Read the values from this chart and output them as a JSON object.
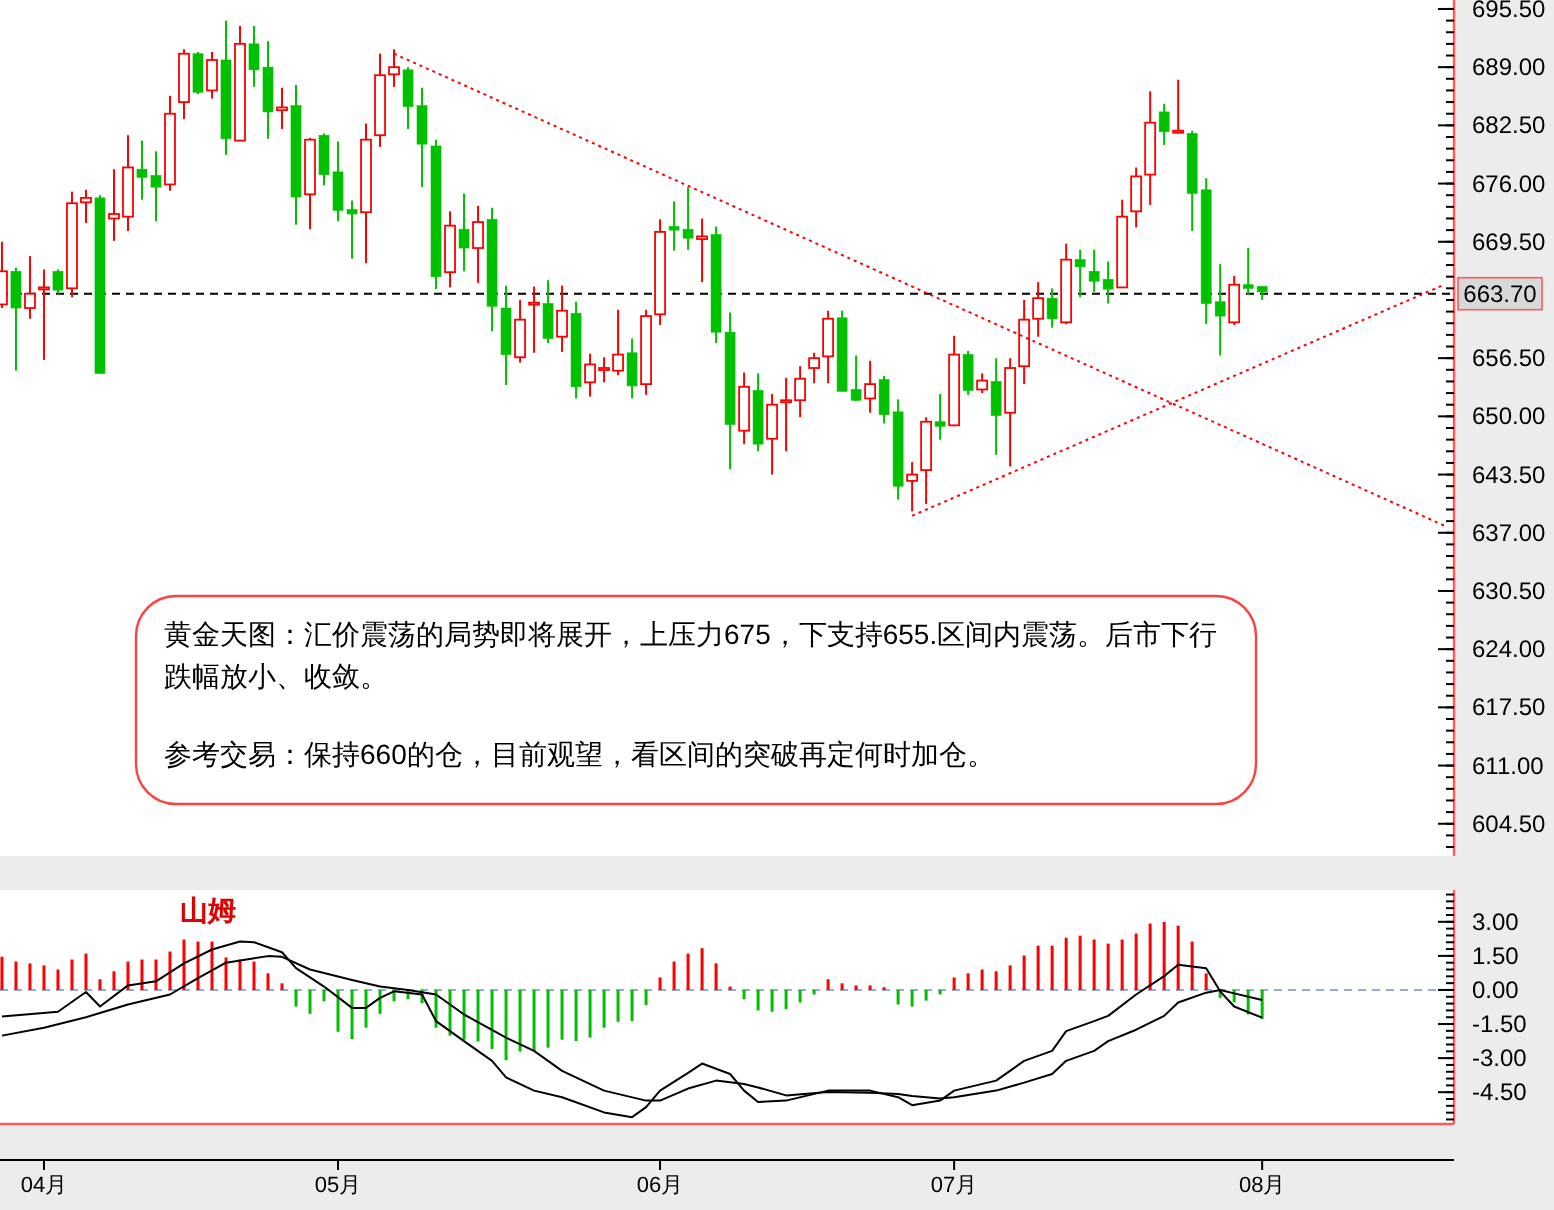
{
  "chart_data": [
    {
      "type": "candlestick",
      "categories": [
        null,
        null,
        null,
        null,
        null,
        null,
        null,
        null,
        null,
        null,
        null,
        null,
        null,
        null,
        null,
        null,
        null,
        null,
        null,
        null,
        null,
        null,
        null,
        null,
        null,
        null,
        null,
        null,
        null,
        null,
        null,
        null,
        null,
        null,
        null,
        null,
        null,
        null,
        null,
        null,
        null,
        null,
        null,
        null,
        null,
        null,
        null,
        null,
        null,
        null,
        null,
        null,
        null,
        null,
        null,
        null,
        null,
        null,
        null,
        null,
        null,
        null,
        null,
        null,
        null,
        null,
        null,
        null,
        null,
        null,
        null,
        null,
        null,
        null,
        null,
        null,
        null,
        null,
        null,
        null,
        null,
        null,
        null,
        null,
        null,
        null,
        null,
        null,
        null,
        null,
        null,
        null,
        null,
        null,
        null,
        null,
        null,
        null,
        null,
        null,
        null,
        null,
        null,
        null
      ],
      "ohlc": [
        [
          662.5,
          669.5,
          662.1,
          666.2
        ],
        [
          666.2,
          666.6,
          655.1,
          662.1
        ],
        [
          662.1,
          667.9,
          660.9,
          663.7
        ],
        [
          664.2,
          666.4,
          656.3,
          664.4
        ],
        [
          666.2,
          666.4,
          663.7,
          664.1
        ],
        [
          664.3,
          675.1,
          663.3,
          673.8
        ],
        [
          673.9,
          675.3,
          671.6,
          674.4
        ],
        [
          674.4,
          674.7,
          654.8,
          654.8
        ],
        [
          672.1,
          677.6,
          669.6,
          672.6
        ],
        [
          672.3,
          681.4,
          670.7,
          677.8
        ],
        [
          677.6,
          680.8,
          674.2,
          676.7
        ],
        [
          676.9,
          679.6,
          671.8,
          675.6
        ],
        [
          675.9,
          685.8,
          675.2,
          683.8
        ],
        [
          685.1,
          691.0,
          683.2,
          690.5
        ],
        [
          690.5,
          690.7,
          686.0,
          686.2
        ],
        [
          686.4,
          690.7,
          685.5,
          689.8
        ],
        [
          689.8,
          694.2,
          679.2,
          681.0
        ],
        [
          680.8,
          693.6,
          680.8,
          691.6
        ],
        [
          691.6,
          693.6,
          686.8,
          688.7
        ],
        [
          689.0,
          691.9,
          681.0,
          684.0
        ],
        [
          684.2,
          686.7,
          682.1,
          684.5
        ],
        [
          684.7,
          687.0,
          671.4,
          674.5
        ],
        [
          674.8,
          681.1,
          670.9,
          680.9
        ],
        [
          681.4,
          681.6,
          675.8,
          677.0
        ],
        [
          677.3,
          680.7,
          671.8,
          673.0
        ],
        [
          673.1,
          674.1,
          667.6,
          672.6
        ],
        [
          672.8,
          682.7,
          667.1,
          680.9
        ],
        [
          681.4,
          690.5,
          680.1,
          688.1
        ],
        [
          688.2,
          691.0,
          686.8,
          689.0
        ],
        [
          688.7,
          689.0,
          682.1,
          684.6
        ],
        [
          684.7,
          686.7,
          675.6,
          680.4
        ],
        [
          680.2,
          680.9,
          664.2,
          665.6
        ],
        [
          666.1,
          672.9,
          664.4,
          671.3
        ],
        [
          670.9,
          674.9,
          666.2,
          668.8
        ],
        [
          668.8,
          673.5,
          664.9,
          671.7
        ],
        [
          672.0,
          673.3,
          659.5,
          662.3
        ],
        [
          662.1,
          664.6,
          653.5,
          656.9
        ],
        [
          656.6,
          663.0,
          656.0,
          660.8
        ],
        [
          662.5,
          664.5,
          657.1,
          662.7
        ],
        [
          662.6,
          665.2,
          658.2,
          658.7
        ],
        [
          658.9,
          664.6,
          657.2,
          661.8
        ],
        [
          661.5,
          662.8,
          652.0,
          653.3
        ],
        [
          653.8,
          657.0,
          652.2,
          655.8
        ],
        [
          655.2,
          656.6,
          653.8,
          655.4
        ],
        [
          655.1,
          661.9,
          654.6,
          656.9
        ],
        [
          657.1,
          658.7,
          652.0,
          653.4
        ],
        [
          653.6,
          661.9,
          652.4,
          661.2
        ],
        [
          661.4,
          672.0,
          660.2,
          670.6
        ],
        [
          671.2,
          674.0,
          668.5,
          670.8
        ],
        [
          670.9,
          675.6,
          668.6,
          669.9
        ],
        [
          669.8,
          672.1,
          665.0,
          670.1
        ],
        [
          670.3,
          671.2,
          658.2,
          659.4
        ],
        [
          659.4,
          661.6,
          644.1,
          649.1
        ],
        [
          648.4,
          654.9,
          646.9,
          653.3
        ],
        [
          652.9,
          654.8,
          646.1,
          646.9
        ],
        [
          647.5,
          652.5,
          643.5,
          651.3
        ],
        [
          651.6,
          654.3,
          646.1,
          651.8
        ],
        [
          651.8,
          655.6,
          649.9,
          654.2
        ],
        [
          655.4,
          657.1,
          653.7,
          656.5
        ],
        [
          656.7,
          661.8,
          653.7,
          660.9
        ],
        [
          661.0,
          661.8,
          652.8,
          652.8
        ],
        [
          653.0,
          656.8,
          651.7,
          651.8
        ],
        [
          652.0,
          656.2,
          650.4,
          653.6
        ],
        [
          654.1,
          654.5,
          649.2,
          650.2
        ],
        [
          650.5,
          651.9,
          640.7,
          642.2
        ],
        [
          642.8,
          644.9,
          639.4,
          643.5
        ],
        [
          644.0,
          649.9,
          640.2,
          649.4
        ],
        [
          649.4,
          652.5,
          647.4,
          648.9
        ],
        [
          649.0,
          659.0,
          648.9,
          656.9
        ],
        [
          656.9,
          657.3,
          652.4,
          652.9
        ],
        [
          653.0,
          654.8,
          652.6,
          654.0
        ],
        [
          653.9,
          656.5,
          645.7,
          650.1
        ],
        [
          650.4,
          656.5,
          644.4,
          655.4
        ],
        [
          655.6,
          663.0,
          653.6,
          660.8
        ],
        [
          660.9,
          665.0,
          658.9,
          663.2
        ],
        [
          663.2,
          664.3,
          659.9,
          660.9
        ],
        [
          660.5,
          669.3,
          660.3,
          667.5
        ],
        [
          667.5,
          668.6,
          663.3,
          666.7
        ],
        [
          666.2,
          668.6,
          663.9,
          665.1
        ],
        [
          665.3,
          667.3,
          662.6,
          664.2
        ],
        [
          664.4,
          674.2,
          664.4,
          672.3
        ],
        [
          672.9,
          677.8,
          671.1,
          676.8
        ],
        [
          677.0,
          686.3,
          673.6,
          682.8
        ],
        [
          684.0,
          684.9,
          680.3,
          681.8
        ],
        [
          681.7,
          687.6,
          681.6,
          681.9
        ],
        [
          681.6,
          681.9,
          670.7,
          674.9
        ],
        [
          675.3,
          676.6,
          660.3,
          662.6
        ],
        [
          662.8,
          667.0,
          656.8,
          661.2
        ],
        [
          660.5,
          665.7,
          660.2,
          664.7
        ],
        [
          664.7,
          668.8,
          663.6,
          664.3
        ],
        [
          664.5,
          664.5,
          663.0,
          663.9
        ],
        null,
        null,
        null,
        null,
        null,
        null,
        null,
        null,
        null,
        null,
        null,
        null,
        null
      ],
      "colors": [
        "#ff0000",
        "#00c000",
        "#ff0000",
        "#ff0000",
        "#00c000",
        "#ff0000",
        "#ff0000",
        "#00c000",
        "#ff0000",
        "#ff0000",
        "#00c000",
        "#00c000",
        "#ff0000",
        "#ff0000",
        "#00c000",
        "#ff0000",
        "#00c000",
        "#ff0000",
        "#00c000",
        "#00c000",
        "#ff0000",
        "#00c000",
        "#ff0000",
        "#00c000",
        "#00c000",
        "#00c000",
        "#ff0000",
        "#ff0000",
        "#ff0000",
        "#00c000",
        "#00c000",
        "#00c000",
        "#ff0000",
        "#00c000",
        "#ff0000",
        "#00c000",
        "#00c000",
        "#ff0000",
        "#ff0000",
        "#00c000",
        "#ff0000",
        "#00c000",
        "#ff0000",
        "#ff0000",
        "#ff0000",
        "#00c000",
        "#ff0000",
        "#ff0000",
        "#00c000",
        "#00c000",
        "#ff0000",
        "#00c000",
        "#00c000",
        "#ff0000",
        "#00c000",
        "#ff0000",
        "#ff0000",
        "#ff0000",
        "#ff0000",
        "#ff0000",
        "#00c000",
        "#00c000",
        "#ff0000",
        "#00c000",
        "#00c000",
        "#ff0000",
        "#ff0000",
        "#00c000",
        "#ff0000",
        "#00c000",
        "#ff0000",
        "#00c000",
        "#ff0000",
        "#ff0000",
        "#ff0000",
        "#00c000",
        "#ff0000",
        "#00c000",
        "#00c000",
        "#00c000",
        "#ff0000",
        "#ff0000",
        "#ff0000",
        "#00c000",
        "#ff0000",
        "#00c000",
        "#00c000",
        "#00c000",
        "#ff0000",
        "#00c000",
        "#00c000",
        null,
        null,
        null,
        null,
        null,
        null,
        null,
        null,
        null,
        null,
        null,
        null,
        null
      ],
      "series": [
        {
          "type": "line",
          "values": [
            null,
            null,
            null,
            null,
            null,
            null,
            null,
            null,
            null,
            null,
            null,
            null,
            null,
            null,
            null,
            null,
            null,
            null,
            null,
            null,
            null,
            null,
            null,
            null,
            null,
            null,
            null,
            null,
            690.5,
            null,
            null,
            null,
            null,
            null,
            null,
            null,
            null,
            null,
            null,
            null,
            null,
            null,
            null,
            null,
            null,
            null,
            null,
            null,
            null,
            null,
            null,
            null,
            null,
            null,
            null,
            null,
            null,
            null,
            null,
            null,
            null,
            null,
            null,
            null,
            null,
            null,
            null,
            null,
            null,
            null,
            null,
            null,
            null,
            null,
            null,
            null,
            null,
            null,
            null,
            null,
            null,
            null,
            null,
            null,
            null,
            null,
            null,
            null,
            null,
            null,
            null,
            null,
            null,
            null,
            null,
            null,
            null,
            null,
            null,
            null,
            null,
            null,
            null,
            637.8
          ],
          "color": "#ff0000",
          "line_style": "dotted"
        },
        {
          "type": "line",
          "values": [
            null,
            null,
            null,
            null,
            null,
            null,
            null,
            null,
            null,
            null,
            null,
            null,
            null,
            null,
            null,
            null,
            null,
            null,
            null,
            null,
            null,
            null,
            null,
            null,
            null,
            null,
            null,
            null,
            null,
            null,
            null,
            null,
            null,
            null,
            null,
            null,
            null,
            null,
            null,
            null,
            null,
            null,
            null,
            null,
            null,
            null,
            null,
            null,
            null,
            null,
            null,
            null,
            null,
            null,
            null,
            null,
            null,
            null,
            null,
            null,
            null,
            null,
            null,
            null,
            null,
            638.9,
            null,
            null,
            null,
            null,
            null,
            null,
            null,
            null,
            null,
            null,
            null,
            null,
            null,
            null,
            null,
            null,
            null,
            null,
            null,
            null,
            null,
            null,
            null,
            null,
            null,
            null,
            null,
            null,
            null,
            null,
            null,
            null,
            null,
            null,
            null,
            null,
            null,
            664.7
          ],
          "color": "#ff0000",
          "line_style": "dotted"
        }
      ],
      "ylim": [
        600.9,
        696.5
      ],
      "yticks": [
        {
          "value": 604.5,
          "label": "604.50"
        },
        {
          "value": 611,
          "label": "611.00"
        },
        {
          "value": 617.5,
          "label": "617.50"
        },
        {
          "value": 624,
          "label": "624.00"
        },
        {
          "value": 630.5,
          "label": "630.50"
        },
        {
          "value": 637,
          "label": "637.00"
        },
        {
          "value": 643.5,
          "label": "643.50"
        },
        {
          "value": 650,
          "label": "650.00"
        },
        {
          "value": 656.5,
          "label": "656.50"
        },
        {
          "value": 669.5,
          "label": "669.50"
        },
        {
          "value": 676,
          "label": "676.00"
        },
        {
          "value": 682.5,
          "label": "682.50"
        },
        {
          "value": 689,
          "label": "689.00"
        },
        {
          "value": 695.5,
          "label": "695.50"
        }
      ],
      "ref_lines": [
        {
          "axis": "y",
          "value": 663.7,
          "label": "663.70",
          "color": "#000000",
          "line_style": "dashed"
        }
      ],
      "annotations": [
        "黄金天图：汇价震荡的局势即将展开，上压力675，下支持655.区间内震荡。后市下行跌幅放小、收敛。",
        "参考交易：保持660的仓，目前观望，看区间的突破再定何时加仓。"
      ],
      "tick_labels": "y"
    },
    {
      "type": "bar",
      "title": "山姆",
      "categories": [
        null,
        null,
        null,
        "04月",
        null,
        null,
        null,
        null,
        null,
        null,
        null,
        null,
        null,
        null,
        null,
        null,
        null,
        null,
        null,
        null,
        null,
        null,
        null,
        null,
        "05月",
        null,
        null,
        null,
        null,
        null,
        null,
        null,
        null,
        null,
        null,
        null,
        null,
        null,
        null,
        null,
        null,
        null,
        null,
        null,
        null,
        null,
        null,
        "06月",
        null,
        null,
        null,
        null,
        null,
        null,
        null,
        null,
        null,
        null,
        null,
        null,
        null,
        null,
        null,
        null,
        null,
        null,
        null,
        null,
        "07月",
        null,
        null,
        null,
        null,
        null,
        null,
        null,
        null,
        null,
        null,
        null,
        null,
        null,
        null,
        null,
        null,
        null,
        null,
        null,
        null,
        null,
        "08月",
        null,
        null,
        null,
        null,
        null,
        null,
        null,
        null,
        null,
        null,
        null,
        null,
        null
      ],
      "series": [
        {
          "values": [
            1.46,
            1.25,
            1.17,
            1.08,
            0.9,
            1.34,
            1.6,
            0.47,
            0.82,
            1.25,
            1.34,
            1.34,
            1.69,
            2.22,
            2.13,
            2.13,
            1.43,
            1.34,
            1.25,
            0.73,
            0.29,
            -0.73,
            -1.05,
            -0.5,
            -1.84,
            -2.16,
            -1.66,
            -1.05,
            -0.5,
            -0.41,
            -0.58,
            -1.66,
            -2.01,
            -2.19,
            -2.27,
            -2.6,
            -3.09,
            -2.71,
            -2.71,
            -2.54,
            -2.19,
            -2.25,
            -2.1,
            -1.66,
            -1.4,
            -1.37,
            -0.67,
            0.55,
            1.25,
            1.6,
            1.84,
            1.17,
            0.15,
            -0.41,
            -0.9,
            -0.96,
            -0.85,
            -0.55,
            -0.2,
            0.47,
            0.29,
            0.2,
            0.2,
            0.12,
            -0.64,
            -0.73,
            -0.47,
            -0.2,
            0.55,
            0.73,
            0.9,
            0.82,
            1.08,
            1.52,
            1.95,
            1.95,
            2.3,
            2.39,
            2.22,
            2.04,
            2.22,
            2.48,
            2.92,
            3.0,
            2.83,
            2.13,
            0.73,
            -0.35,
            -0.55,
            -1.08,
            -1.28,
            null,
            null,
            null,
            null,
            null,
            null,
            null,
            null,
            null,
            null,
            null,
            null,
            null
          ],
          "colors": [
            "#ff0000",
            "#ff0000",
            "#ff0000",
            "#ff0000",
            "#ff0000",
            "#ff0000",
            "#ff0000",
            "#ff0000",
            "#ff0000",
            "#ff0000",
            "#ff0000",
            "#ff0000",
            "#ff0000",
            "#ff0000",
            "#ff0000",
            "#ff0000",
            "#ff0000",
            "#ff0000",
            "#ff0000",
            "#ff0000",
            "#ff0000",
            "#00c000",
            "#00c000",
            "#00c000",
            "#00c000",
            "#00c000",
            "#00c000",
            "#00c000",
            "#00c000",
            "#00c000",
            "#00c000",
            "#00c000",
            "#00c000",
            "#00c000",
            "#00c000",
            "#00c000",
            "#00c000",
            "#00c000",
            "#00c000",
            "#00c000",
            "#00c000",
            "#00c000",
            "#00c000",
            "#00c000",
            "#00c000",
            "#00c000",
            "#00c000",
            "#ff0000",
            "#ff0000",
            "#ff0000",
            "#ff0000",
            "#ff0000",
            "#ff0000",
            "#00c000",
            "#00c000",
            "#00c000",
            "#00c000",
            "#00c000",
            "#00c000",
            "#ff0000",
            "#ff0000",
            "#ff0000",
            "#ff0000",
            "#ff0000",
            "#00c000",
            "#00c000",
            "#00c000",
            "#00c000",
            "#ff0000",
            "#ff0000",
            "#ff0000",
            "#ff0000",
            "#ff0000",
            "#ff0000",
            "#ff0000",
            "#ff0000",
            "#ff0000",
            "#ff0000",
            "#ff0000",
            "#ff0000",
            "#ff0000",
            "#ff0000",
            "#ff0000",
            "#ff0000",
            "#ff0000",
            "#ff0000",
            "#ff0000",
            "#00c000",
            "#00c000",
            "#00c000",
            "#00c000",
            null,
            null,
            null,
            null,
            null,
            null,
            null,
            null,
            null,
            null,
            null,
            null,
            null
          ]
        },
        {
          "type": "line",
          "values": [
            -1.17,
            null,
            null,
            null,
            -0.96,
            null,
            -0.09,
            -0.73,
            null,
            0.2,
            null,
            0.38,
            null,
            1.17,
            null,
            1.78,
            null,
            2.13,
            2.1,
            null,
            1.66,
            0.96,
            null,
            0.15,
            null,
            -0.79,
            -0.79,
            -0.35,
            -0.06,
            null,
            -0.2,
            -1.37,
            null,
            -2.25,
            null,
            -3.12,
            -3.85,
            null,
            -4.43,
            null,
            -4.72,
            null,
            null,
            -5.39,
            null,
            -5.6,
            -5.16,
            -4.43,
            null,
            -3.65,
            -3.24,
            null,
            -3.7,
            -4.43,
            -4.93,
            null,
            -4.87,
            null,
            null,
            -4.43,
            null,
            null,
            -4.43,
            null,
            -4.72,
            -5.07,
            null,
            -4.87,
            -4.43,
            null,
            null,
            -3.99,
            null,
            -3.12,
            null,
            -2.68,
            -1.81,
            null,
            -1.37,
            -1.14,
            null,
            -0.2,
            null,
            0.61,
            1.11,
            null,
            0.96,
            -0.06,
            -0.73,
            null,
            -1.22,
            null,
            null,
            null,
            null,
            null,
            null,
            null,
            null,
            null,
            null,
            null,
            null,
            null
          ],
          "color": "#000000"
        },
        {
          "type": "line",
          "values": [
            -2.01,
            null,
            null,
            -1.66,
            null,
            null,
            -1.2,
            null,
            null,
            -0.64,
            null,
            null,
            -0.2,
            null,
            0.52,
            null,
            1.2,
            null,
            null,
            1.49,
            1.46,
            null,
            0.9,
            null,
            null,
            0.44,
            null,
            0.15,
            null,
            0,
            null,
            -0.2,
            null,
            -1.08,
            null,
            null,
            -2.1,
            null,
            -2.68,
            null,
            -3.56,
            null,
            null,
            -4.43,
            null,
            null,
            -4.87,
            -4.87,
            null,
            -4.34,
            null,
            -3.99,
            null,
            -4.14,
            -4.29,
            null,
            -4.64,
            null,
            null,
            -4.49,
            null,
            null,
            -4.52,
            null,
            -4.58,
            -4.67,
            null,
            -4.78,
            -4.72,
            null,
            null,
            -4.43,
            null,
            -4.08,
            null,
            -3.7,
            -3.12,
            null,
            -2.68,
            -2.25,
            null,
            -1.75,
            null,
            -1.14,
            -0.55,
            null,
            -0.12,
            0,
            -0.15,
            null,
            -0.44,
            null,
            null,
            null,
            null,
            null,
            null,
            null,
            null,
            null,
            null,
            null,
            null,
            null
          ],
          "color": "#000000"
        }
      ],
      "ylim": [
        -5.9,
        4.4
      ],
      "yticks": [
        {
          "value": -4.5,
          "label": "-4.50"
        },
        {
          "value": -3,
          "label": "-3.00"
        },
        {
          "value": -1.5,
          "label": "-1.50"
        },
        {
          "value": 0,
          "label": "0.00"
        },
        {
          "value": 1.5,
          "label": "1.50"
        },
        {
          "value": 3,
          "label": "3.00"
        }
      ],
      "ref_lines": [
        {
          "axis": "y",
          "value": 0,
          "color": "#9aaccc",
          "line_style": "dashed"
        }
      ]
    }
  ]
}
